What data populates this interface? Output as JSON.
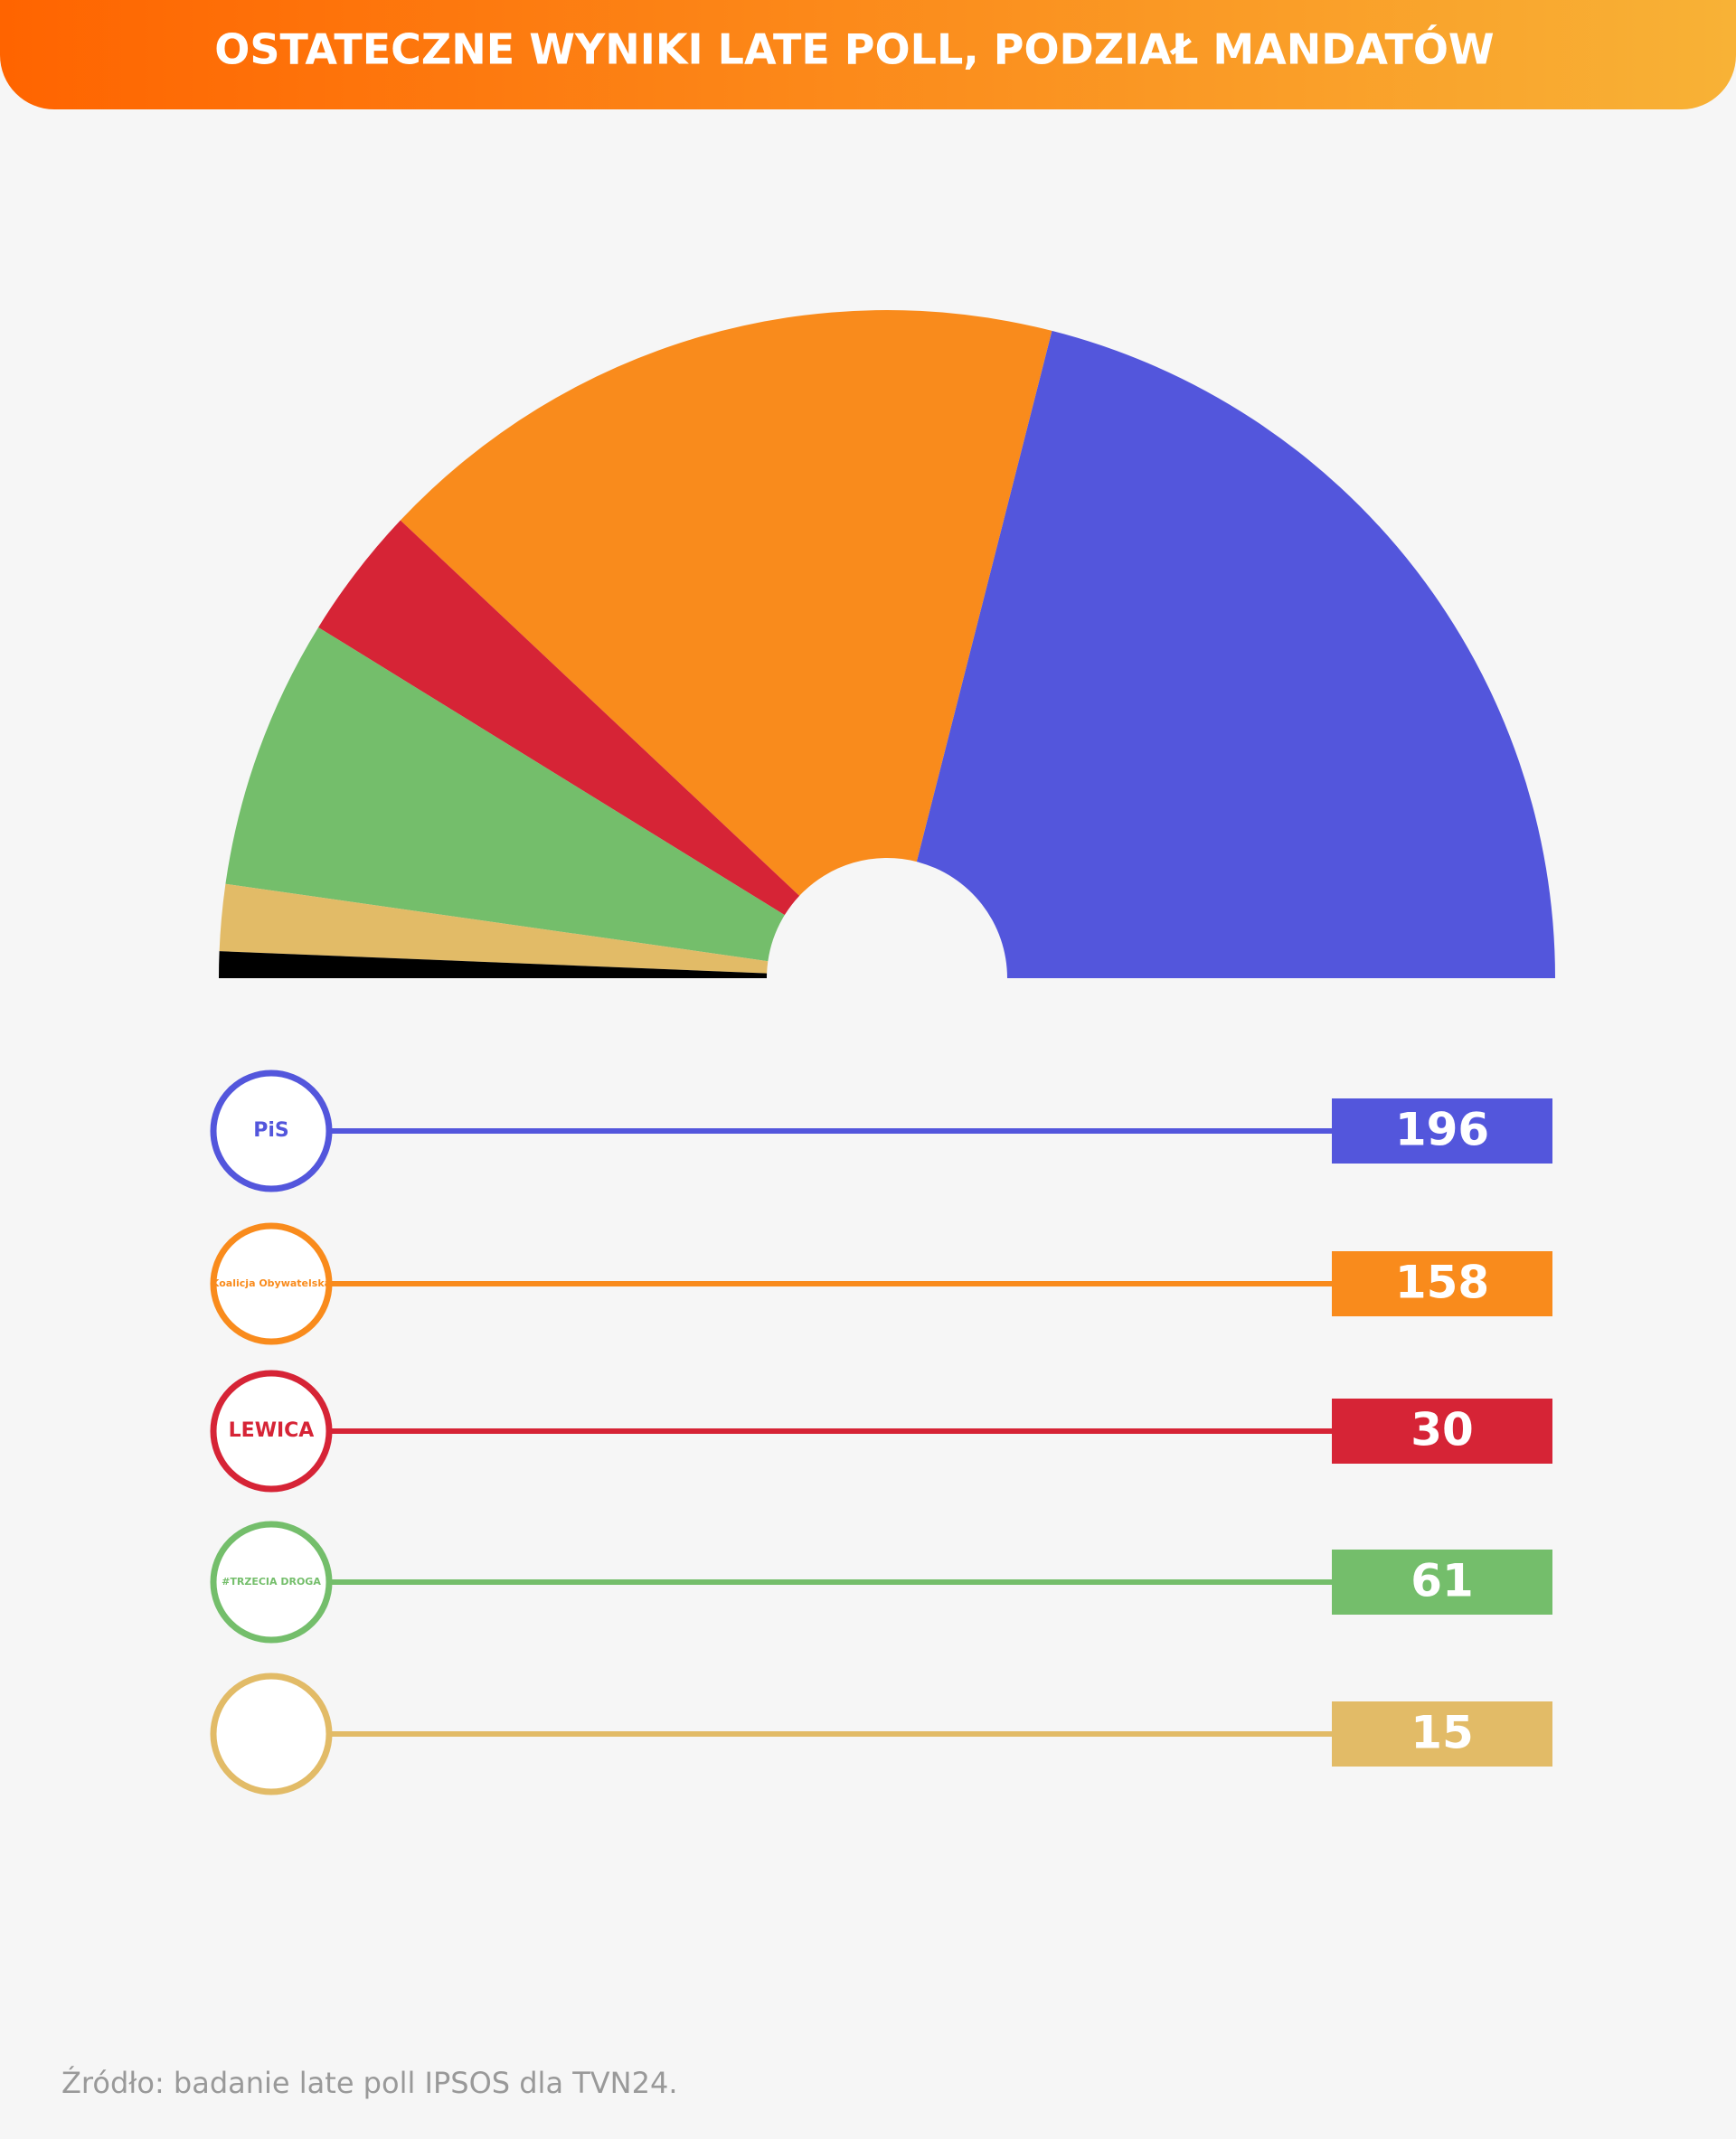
{
  "chart_data": {
    "type": "semicircle",
    "title": "OSTATECZNE WYNIKI LATE POLL, PODZIAŁ MANDATÓW",
    "source": "Źródło: badanie late poll IPSOS dla TVN24.",
    "logos": [
      "PiS",
      "Koalicja Obywatelska",
      "LEWICA",
      "#TRZECIA DROGA",
      null
    ],
    "values": [
      196,
      158,
      30,
      61,
      15
    ],
    "colors": [
      "#5356dc",
      "#f98b1c",
      "#d62436",
      "#74be6b",
      "#e2bb67"
    ],
    "other": {
      "value": 6,
      "color": "#000000"
    }
  }
}
